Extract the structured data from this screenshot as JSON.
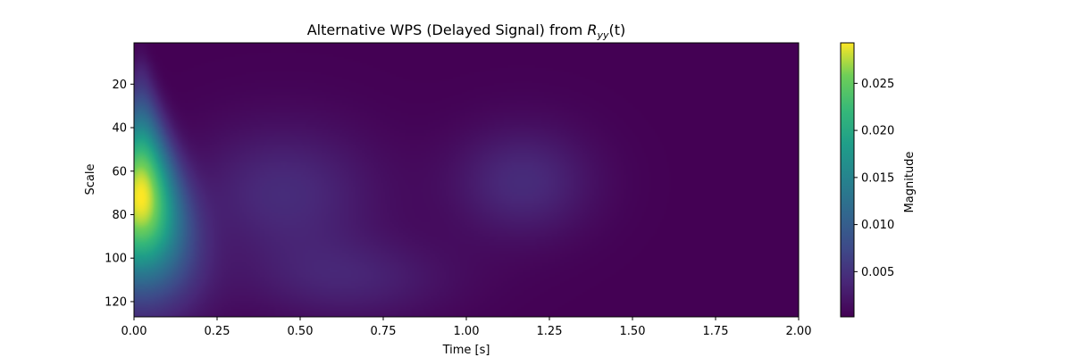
{
  "chart_data": {
    "type": "heatmap",
    "title": "Alternative WPS (Delayed Signal) from R_yy(t)",
    "title_parts": {
      "prefix": "Alternative WPS (Delayed Signal) from ",
      "symbol": "R",
      "subscript": "yy",
      "suffix": "(t)"
    },
    "xlabel": "Time [s]",
    "ylabel": "Scale",
    "xlim": [
      0.0,
      2.0
    ],
    "ylim": [
      127,
      1
    ],
    "x_ticks": [
      0.0,
      0.25,
      0.5,
      0.75,
      1.0,
      1.25,
      1.5,
      1.75,
      2.0
    ],
    "x_tick_labels": [
      "0.00",
      "0.25",
      "0.50",
      "0.75",
      "1.00",
      "1.25",
      "1.50",
      "1.75",
      "2.00"
    ],
    "y_ticks": [
      20,
      40,
      60,
      80,
      100,
      120
    ],
    "y_tick_labels": [
      "20",
      "40",
      "60",
      "80",
      "100",
      "120"
    ],
    "colorbar": {
      "label": "Magnitude",
      "range": [
        0.0002,
        0.0293
      ],
      "ticks": [
        0.005,
        0.01,
        0.015,
        0.02,
        0.025
      ],
      "tick_labels": [
        "0.005",
        "0.010",
        "0.015",
        "0.020",
        "0.025"
      ],
      "colormap": "viridis"
    },
    "features": [
      {
        "t": 0.02,
        "scale": 72,
        "magnitude": 0.029
      },
      {
        "t": 0.45,
        "scale": 70,
        "magnitude": 0.004
      },
      {
        "t": 0.65,
        "scale": 110,
        "magnitude": 0.003
      },
      {
        "t": 1.17,
        "scale": 65,
        "magnitude": 0.004
      }
    ],
    "grid": false
  }
}
